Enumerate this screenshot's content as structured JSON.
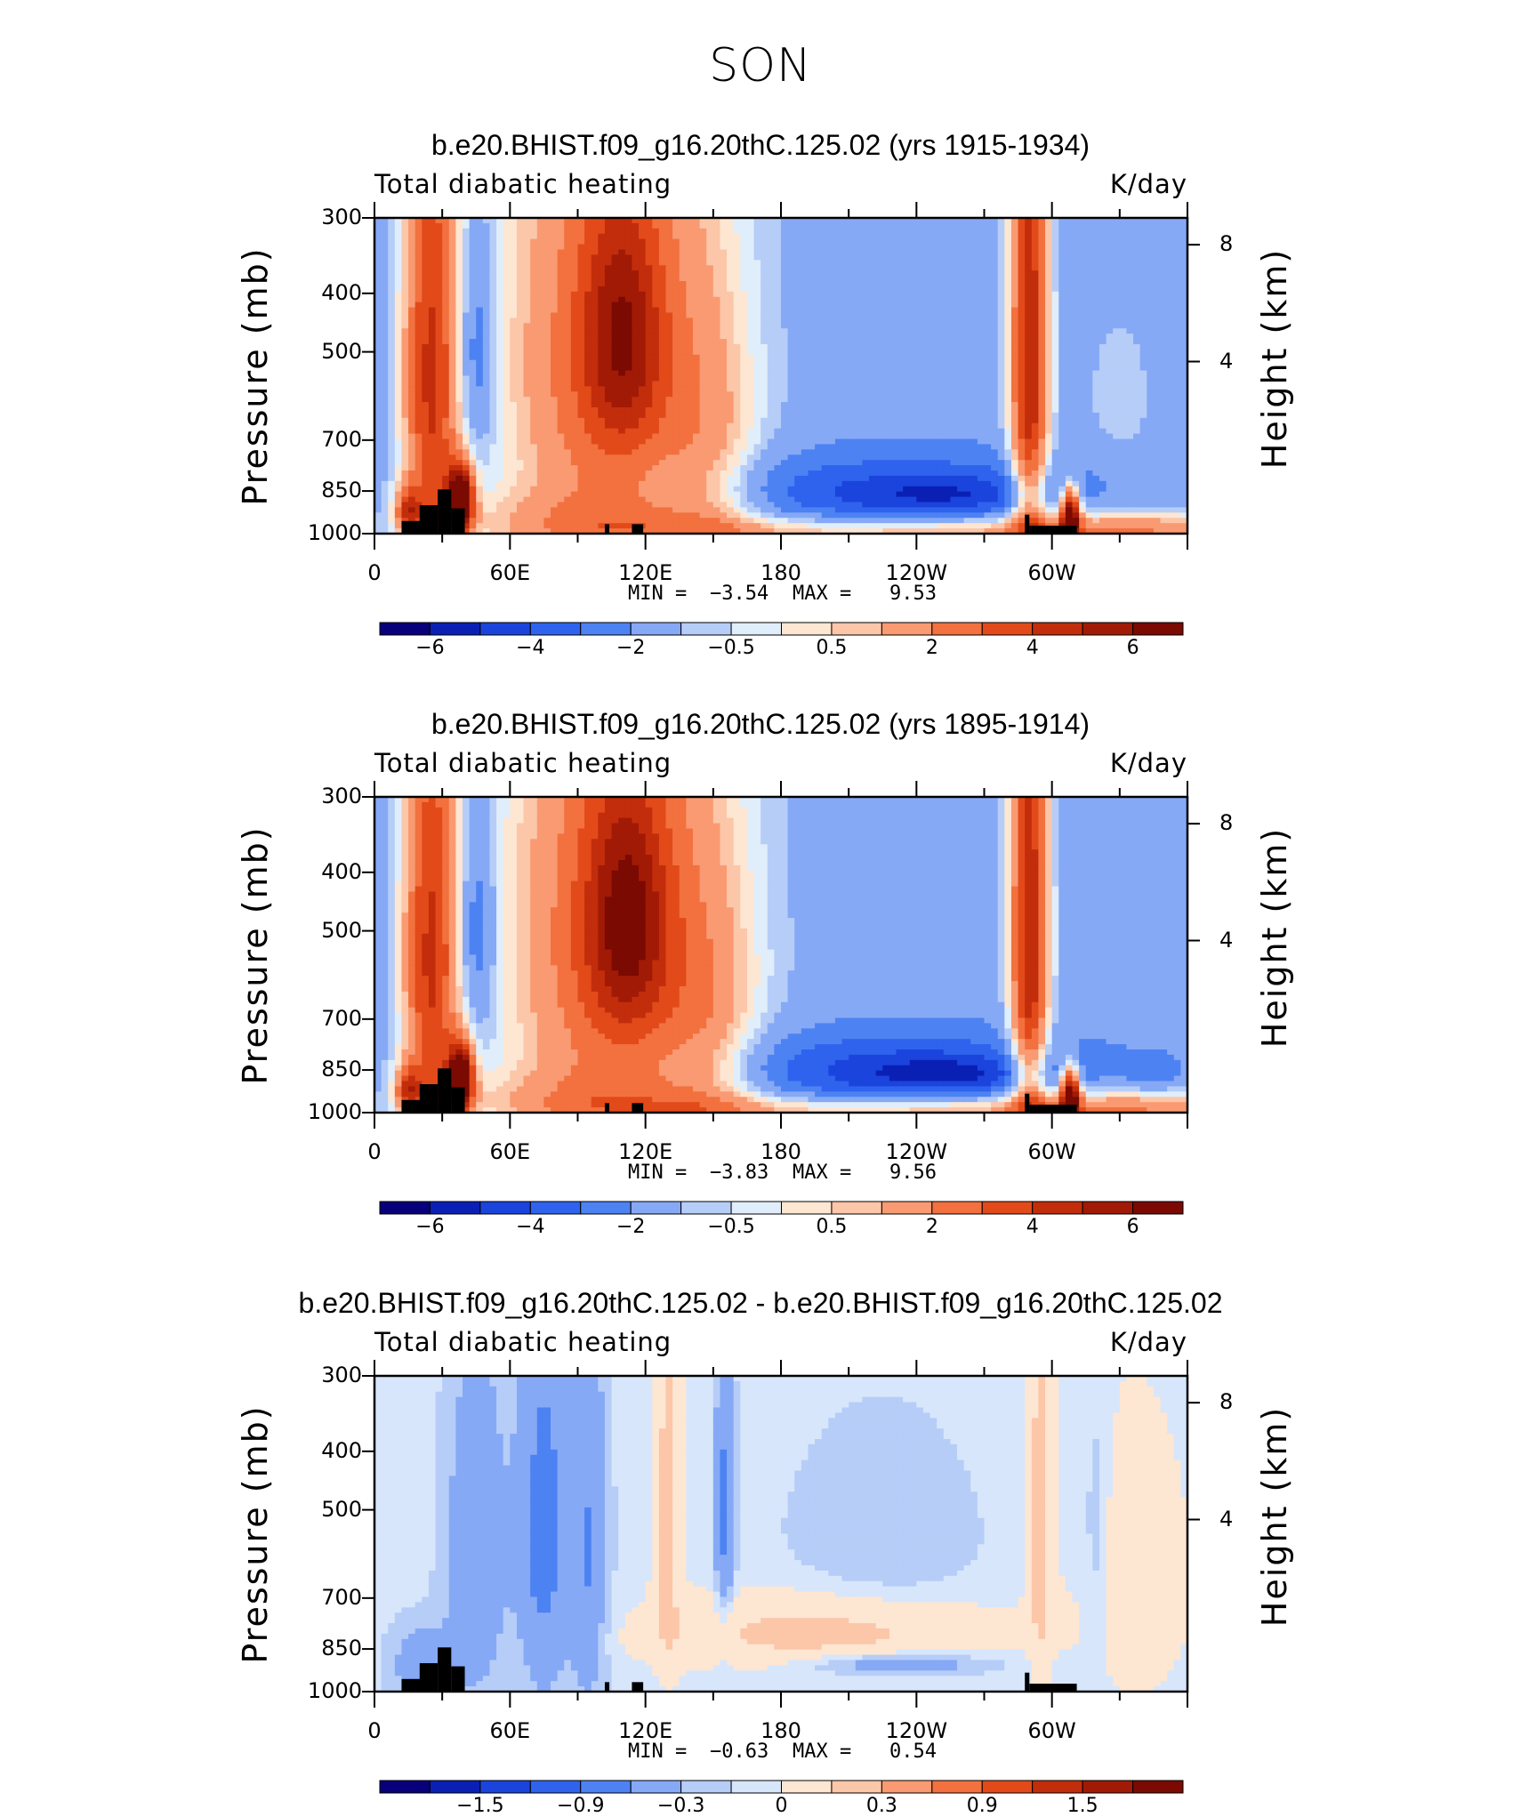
{
  "title": "SON",
  "colors": {
    "scale_12": [
      "#08007a",
      "#0a20b5",
      "#1b44dd",
      "#2f63ee",
      "#4d82f2",
      "#86a9f6",
      "#b6cdf8",
      "#e0eefb",
      "#fde6d2",
      "#fcc6a9",
      "#f99a72",
      "#f2713f",
      "#e24a1a",
      "#c22d0b",
      "#a11a06",
      "#7a0a02"
    ],
    "diff": [
      "#08007a",
      "#0a20b5",
      "#1b44dd",
      "#2f63ee",
      "#4d82f2",
      "#86a9f6",
      "#b6cdf8",
      "#d7e6fb",
      "#fde6d2",
      "#fcc6a9",
      "#f99a72",
      "#f2713f",
      "#e24a1a",
      "#c22d0b",
      "#a11a06",
      "#7a0a02"
    ]
  },
  "chart_data": [
    {
      "type": "heatmap",
      "title": "b.e20.BHIST.f09_g16.20thC.125.02 (yrs 1915-1934)",
      "left_label": "Total diabatic heating",
      "right_label": "K/day",
      "ylabel": "Pressure (mb)",
      "ylabel_right": "Height (km)",
      "y_ticks": [
        "300",
        "400",
        "500",
        "700",
        "850",
        "1000"
      ],
      "height_ticks": [
        "8",
        "4"
      ],
      "x_ticks": [
        "0",
        "60E",
        "120E",
        "180",
        "120W",
        "60W"
      ],
      "min_label": "MIN =",
      "min_value": "−3.54",
      "max_label": "MAX =",
      "max_value": "9.53",
      "colorbar_ticks": [
        "−6",
        "−4",
        "−2",
        "−0.5",
        "0.5",
        "2",
        "4",
        "6"
      ],
      "colorbar_colors": "scale_12",
      "background_level": -1.5,
      "features": [
        {
          "lon": 25,
          "p": 550,
          "sx": 9,
          "sp": 380,
          "v": 5.5
        },
        {
          "lon": 15,
          "p": 920,
          "sx": 4,
          "sp": 60,
          "v": 4
        },
        {
          "lon": 38,
          "p": 880,
          "sx": 4,
          "sp": 80,
          "v": 9
        },
        {
          "lon": 45,
          "p": 500,
          "sx": 6,
          "sp": 150,
          "v": -2.2
        },
        {
          "lon": 105,
          "p": 520,
          "sx": 35,
          "sp": 420,
          "v": 4.5
        },
        {
          "lon": 110,
          "p": 470,
          "sx": 12,
          "sp": 150,
          "v": 3.5
        },
        {
          "lon": 95,
          "p": 950,
          "sx": 55,
          "sp": 80,
          "v": 1.5
        },
        {
          "lon": 150,
          "p": 780,
          "sx": 15,
          "sp": 300,
          "v": 1.5
        },
        {
          "lon": 230,
          "p": 860,
          "sx": 60,
          "sp": 90,
          "v": -2.8
        },
        {
          "lon": 255,
          "p": 860,
          "sx": 25,
          "sp": 40,
          "v": -1.2
        },
        {
          "lon": 250,
          "p": 990,
          "sx": 90,
          "sp": 40,
          "v": 3.0
        },
        {
          "lon": 290,
          "p": 520,
          "sx": 6,
          "sp": 380,
          "v": 6.5
        },
        {
          "lon": 308,
          "p": 930,
          "sx": 3,
          "sp": 70,
          "v": 8
        },
        {
          "lon": 335,
          "p": 980,
          "sx": 35,
          "sp": 60,
          "v": 2.0
        },
        {
          "lon": 330,
          "p": 600,
          "sx": 12,
          "sp": 150,
          "v": 0.8
        }
      ]
    },
    {
      "type": "heatmap",
      "title": "b.e20.BHIST.f09_g16.20thC.125.02 (yrs 1895-1914)",
      "left_label": "Total diabatic heating",
      "right_label": "K/day",
      "ylabel": "Pressure (mb)",
      "ylabel_right": "Height (km)",
      "y_ticks": [
        "300",
        "400",
        "500",
        "700",
        "850",
        "1000"
      ],
      "height_ticks": [
        "8",
        "4"
      ],
      "x_ticks": [
        "0",
        "60E",
        "120E",
        "180",
        "120W",
        "60W"
      ],
      "min_label": "MIN =",
      "min_value": "−3.83",
      "max_label": "MAX =",
      "max_value": "9.56",
      "colorbar_ticks": [
        "−6",
        "−4",
        "−2",
        "−0.5",
        "0.5",
        "2",
        "4",
        "6"
      ],
      "colorbar_colors": "scale_12",
      "background_level": -1.5,
      "features": [
        {
          "lon": 25,
          "p": 550,
          "sx": 9,
          "sp": 380,
          "v": 5.5
        },
        {
          "lon": 15,
          "p": 920,
          "sx": 4,
          "sp": 60,
          "v": 4
        },
        {
          "lon": 38,
          "p": 880,
          "sx": 4,
          "sp": 80,
          "v": 9
        },
        {
          "lon": 45,
          "p": 500,
          "sx": 6,
          "sp": 150,
          "v": -2.2
        },
        {
          "lon": 108,
          "p": 520,
          "sx": 35,
          "sp": 420,
          "v": 4.8
        },
        {
          "lon": 112,
          "p": 480,
          "sx": 12,
          "sp": 150,
          "v": 3.8
        },
        {
          "lon": 95,
          "p": 950,
          "sx": 55,
          "sp": 80,
          "v": 1.5
        },
        {
          "lon": 150,
          "p": 780,
          "sx": 15,
          "sp": 300,
          "v": 1.5
        },
        {
          "lon": 230,
          "p": 860,
          "sx": 60,
          "sp": 90,
          "v": -3.0
        },
        {
          "lon": 255,
          "p": 860,
          "sx": 25,
          "sp": 40,
          "v": -1.4
        },
        {
          "lon": 250,
          "p": 990,
          "sx": 90,
          "sp": 40,
          "v": 3.0
        },
        {
          "lon": 290,
          "p": 520,
          "sx": 6,
          "sp": 380,
          "v": 6.5
        },
        {
          "lon": 308,
          "p": 930,
          "sx": 3,
          "sp": 70,
          "v": 8
        },
        {
          "lon": 335,
          "p": 980,
          "sx": 35,
          "sp": 60,
          "v": 2.0
        },
        {
          "lon": 345,
          "p": 860,
          "sx": 8,
          "sp": 40,
          "v": -1.2
        }
      ]
    },
    {
      "type": "heatmap",
      "title": "b.e20.BHIST.f09_g16.20thC.125.02 - b.e20.BHIST.f09_g16.20thC.125.02",
      "left_label": "Total diabatic heating",
      "right_label": "K/day",
      "ylabel": "Pressure (mb)",
      "ylabel_right": "Height (km)",
      "y_ticks": [
        "300",
        "400",
        "500",
        "700",
        "850",
        "1000"
      ],
      "height_ticks": [
        "8",
        "4"
      ],
      "x_ticks": [
        "0",
        "60E",
        "120E",
        "180",
        "120W",
        "60W"
      ],
      "min_label": "MIN =",
      "min_value": "−0.63",
      "max_label": "MAX =",
      "max_value": "0.54",
      "colorbar_ticks": [
        "−1.5",
        "−0.9",
        "−0.3",
        "0",
        "0.3",
        "0.9",
        "1.5"
      ],
      "colorbar_colors": "diff",
      "background_level": 0.05,
      "features": [
        {
          "lon": 45,
          "p": 600,
          "sx": 10,
          "sp": 300,
          "v": -0.3
        },
        {
          "lon": 75,
          "p": 550,
          "sx": 8,
          "sp": 300,
          "v": -0.45
        },
        {
          "lon": 95,
          "p": 600,
          "sx": 6,
          "sp": 300,
          "v": -0.35
        },
        {
          "lon": 130,
          "p": 500,
          "sx": 4,
          "sp": 250,
          "v": 0.35
        },
        {
          "lon": 155,
          "p": 500,
          "sx": 3,
          "sp": 200,
          "v": -0.4
        },
        {
          "lon": 225,
          "p": 560,
          "sx": 30,
          "sp": 160,
          "v": -0.15
        },
        {
          "lon": 200,
          "p": 800,
          "sx": 50,
          "sp": 80,
          "v": 0.35
        },
        {
          "lon": 230,
          "p": 900,
          "sx": 30,
          "sp": 30,
          "v": -0.35
        },
        {
          "lon": 295,
          "p": 500,
          "sx": 4,
          "sp": 300,
          "v": 0.35
        },
        {
          "lon": 320,
          "p": 600,
          "sx": 5,
          "sp": 200,
          "v": -0.2
        },
        {
          "lon": 335,
          "p": 650,
          "sx": 15,
          "sp": 200,
          "v": 0.25
        },
        {
          "lon": 20,
          "p": 900,
          "sx": 10,
          "sp": 100,
          "v": -0.25
        }
      ]
    }
  ]
}
